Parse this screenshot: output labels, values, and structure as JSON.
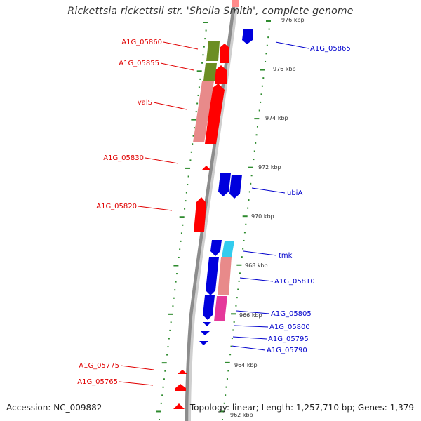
{
  "header": {
    "title": "Rickettsia rickettsii str. 'Sheila Smith', complete genome"
  },
  "footer": {
    "accession": "Accession: NC_009882",
    "topology": "Topology: linear; Length: 1,257,710 bp; Genes: 1,379"
  },
  "colors": {
    "forward_label": "#e00000",
    "reverse_label": "#0000cc",
    "backbone": "#8c8c8c",
    "tick_major": "#2e8b2e",
    "tick_minor": "#2e8b2e"
  },
  "scale": {
    "unit": "kbp",
    "tick_labels": [
      "976 kbp",
      "976 kbp",
      "974 kbp",
      "972 kbp",
      "970 kbp",
      "968 kbp",
      "966 kbp",
      "964 kbp",
      "962 kbp"
    ]
  },
  "forward_genes": [
    {
      "label": "A1G_05860"
    },
    {
      "label": "A1G_05855"
    },
    {
      "label": "valS"
    },
    {
      "label": "A1G_05830"
    },
    {
      "label": "A1G_05820"
    },
    {
      "label": "A1G_05775"
    },
    {
      "label": "A1G_05765"
    }
  ],
  "reverse_genes": [
    {
      "label": "A1G_05865"
    },
    {
      "label": "ubiA"
    },
    {
      "label": "tmk"
    },
    {
      "label": "A1G_05810"
    },
    {
      "label": "A1G_05805"
    },
    {
      "label": "A1G_05800"
    },
    {
      "label": "A1G_05795"
    },
    {
      "label": "A1G_05790"
    }
  ]
}
